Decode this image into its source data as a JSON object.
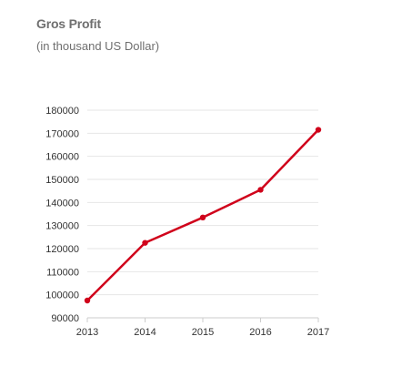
{
  "chart_data": {
    "type": "line",
    "title": "Gros Profit",
    "subtitle": "(in thousand US Dollar)",
    "xlabel": "",
    "ylabel": "",
    "x": [
      "2013",
      "2014",
      "2015",
      "2016",
      "2017"
    ],
    "series": [
      {
        "values": [
          97500,
          122500,
          133500,
          145500,
          171500
        ]
      }
    ],
    "ylim": [
      90000,
      180000
    ],
    "yticks": [
      90000,
      100000,
      110000,
      120000,
      130000,
      140000,
      150000,
      160000,
      170000,
      180000
    ],
    "ytick_labels": [
      "90000",
      "100000",
      "110000",
      "120000",
      "130000",
      "140000",
      "150000",
      "160000",
      "170000",
      "180000"
    ],
    "grid": true,
    "legend": "none",
    "line_color": "#d0021b",
    "grid_color": "#e6e6e6",
    "axis_color": "#cccccc"
  }
}
